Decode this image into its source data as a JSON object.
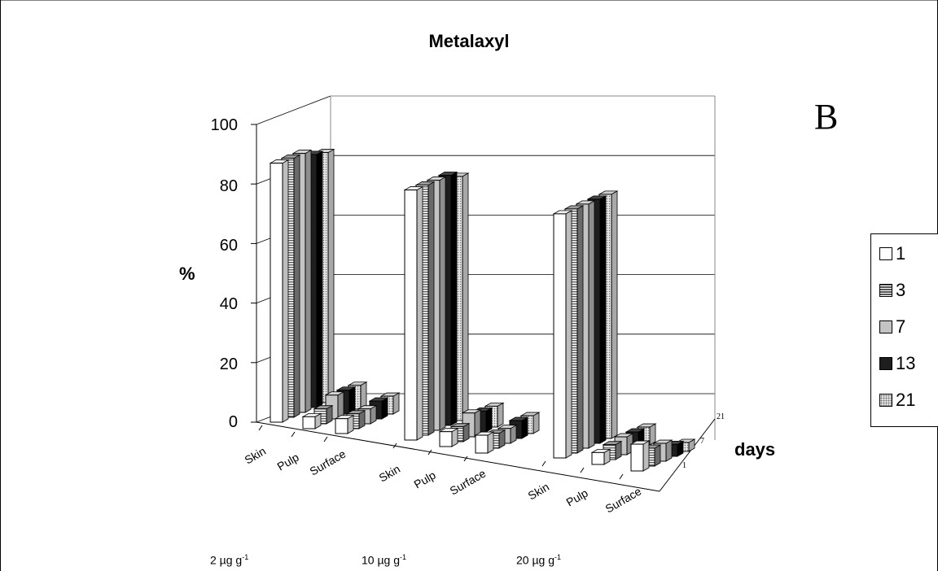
{
  "panel_label": "B",
  "chart_data": {
    "type": "bar",
    "title": "Metalaxyl",
    "ylabel": "%",
    "zlabel": "days",
    "ylim": [
      0,
      100
    ],
    "yticks": [
      "0",
      "20",
      "40",
      "60",
      "80",
      "100"
    ],
    "ytick_values": [
      0,
      20,
      40,
      60,
      80,
      100
    ],
    "depth_ticks": [
      "21",
      "7",
      "1"
    ],
    "categories": [
      "Skin",
      "Pulp",
      "Surface",
      "Skin",
      "Pulp",
      "Surface",
      "Skin",
      "Pulp",
      "Surface"
    ],
    "groups": [
      {
        "label_main": "2 µg g",
        "label_sup": "-1",
        "categories": [
          "Skin",
          "Pulp",
          "Surface"
        ]
      },
      {
        "label_main": "10 µg g",
        "label_sup": "-1",
        "categories": [
          "Skin",
          "Pulp",
          "Surface"
        ]
      },
      {
        "label_main": "20 µg g",
        "label_sup": "-1",
        "categories": [
          "Skin",
          "Pulp",
          "Surface"
        ]
      }
    ],
    "series": [
      {
        "name": "1",
        "values": [
          87,
          4,
          5,
          84,
          5,
          6,
          82,
          4,
          9
        ]
      },
      {
        "name": "3",
        "values": [
          87,
          5,
          5,
          84,
          5,
          5,
          82,
          5,
          6
        ]
      },
      {
        "name": "7",
        "values": [
          87,
          8,
          5,
          84,
          8,
          5,
          82,
          6,
          6
        ]
      },
      {
        "name": "13",
        "values": [
          85,
          8,
          6,
          84,
          7,
          6,
          82,
          6,
          4
        ]
      },
      {
        "name": "21",
        "values": [
          84,
          8,
          6,
          82,
          7,
          6,
          82,
          6,
          3
        ]
      }
    ],
    "legend_position": "right",
    "grid": true,
    "colors": {
      "1": "#ffffff",
      "3": "#8a8a8a",
      "7": "#c4c4c4",
      "13": "#1e1e1e",
      "21": "#d9d9d9"
    }
  }
}
